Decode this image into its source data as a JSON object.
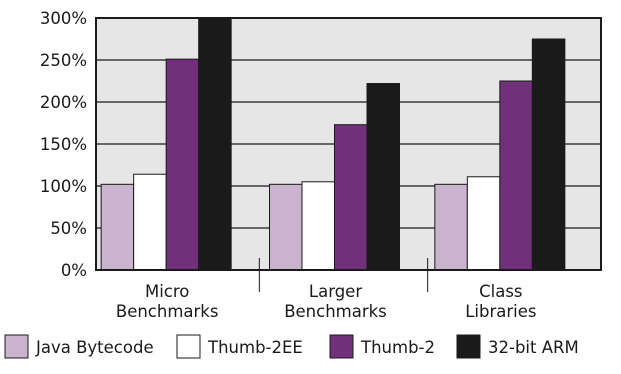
{
  "chart_data": {
    "type": "bar",
    "categories": [
      [
        "Micro",
        "Benchmarks"
      ],
      [
        "Larger",
        "Benchmarks"
      ],
      [
        "Class",
        "Libraries"
      ]
    ],
    "series": [
      {
        "name": "Java Bytecode",
        "values": [
          102,
          102,
          102
        ],
        "color": "#c9b3cd"
      },
      {
        "name": "Thumb-2EE",
        "values": [
          114,
          105,
          111
        ],
        "color": "#ffffff"
      },
      {
        "name": "Thumb-2",
        "values": [
          251,
          173,
          225
        ],
        "color": "#70307a"
      },
      {
        "name": "32-bit ARM",
        "values": [
          300,
          222,
          275
        ],
        "color": "#1a1a1a"
      }
    ],
    "y_ticks": [
      "0%",
      "50%",
      "100%",
      "150%",
      "200%",
      "250%",
      "300%"
    ],
    "y_tick_values": [
      0,
      50,
      100,
      150,
      200,
      250,
      300
    ],
    "ylim": [
      0,
      300
    ],
    "grid": true,
    "legend_placement": "bottom",
    "plot_background": "#e6e6e6",
    "title": "",
    "xlabel": "",
    "ylabel": ""
  }
}
